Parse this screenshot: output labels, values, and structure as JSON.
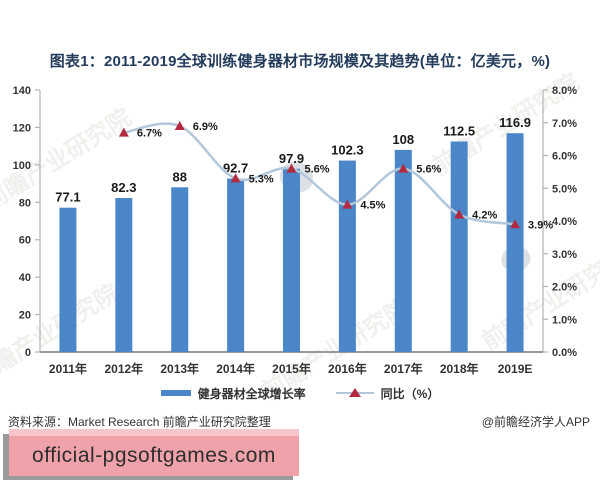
{
  "title": "图表1：2011-2019全球训练健身器材市场规模及其趋势(单位：亿美元，%)",
  "chart_data": {
    "type": "bar+line",
    "title": "图表1：2011-2019全球训练健身器材市场规模及其趋势(单位：亿美元，%)",
    "categories": [
      "2011年",
      "2012年",
      "2013年",
      "2014年",
      "2015年",
      "2016年",
      "2017年",
      "2018年",
      "2019E"
    ],
    "series": [
      {
        "name": "健身器材全球增长率",
        "type": "bar",
        "axis": "left",
        "values": [
          77.1,
          82.3,
          88,
          92.7,
          97.9,
          102.3,
          108,
          112.5,
          116.9
        ]
      },
      {
        "name": "同比（%）",
        "type": "line",
        "axis": "right",
        "values": [
          null,
          6.7,
          6.9,
          5.3,
          5.6,
          4.5,
          5.6,
          4.2,
          3.9
        ]
      }
    ],
    "left_axis": {
      "min": 0,
      "max": 140,
      "step": 20,
      "ticks": [
        "140",
        "120",
        "100",
        "80",
        "60",
        "40",
        "20",
        "0"
      ]
    },
    "right_axis": {
      "min": 0,
      "max": 8,
      "step": 1,
      "ticks": [
        "8.0%",
        "7.0%",
        "6.0%",
        "5.0%",
        "4.0%",
        "3.0%",
        "2.0%",
        "1.0%",
        "0.0%"
      ]
    },
    "grid": false,
    "legend_position": "bottom"
  },
  "source_line": "资料来源：Market Research 前瞻产业研究院整理",
  "credit": "@前瞻经济学人APP",
  "watermark_overlay": "official-pgsoftgames.com",
  "background_watermark": "前瞻产业研究院",
  "colors": {
    "bar": "#4a86c8",
    "line": "#b3c6da",
    "marker": "#b22a40",
    "title_text": "#243c5c",
    "text": "#333333",
    "value_label": "#1a1a1a",
    "axis_line": "#b3b3b3",
    "baseline": "#999999",
    "wm_bg": "#f0a2ab",
    "wm_top": "#f6c6ca",
    "wm_shadow": "#9b9b9b",
    "wm_text": "#2e2e2e",
    "bg_wm": "#b4a493"
  }
}
